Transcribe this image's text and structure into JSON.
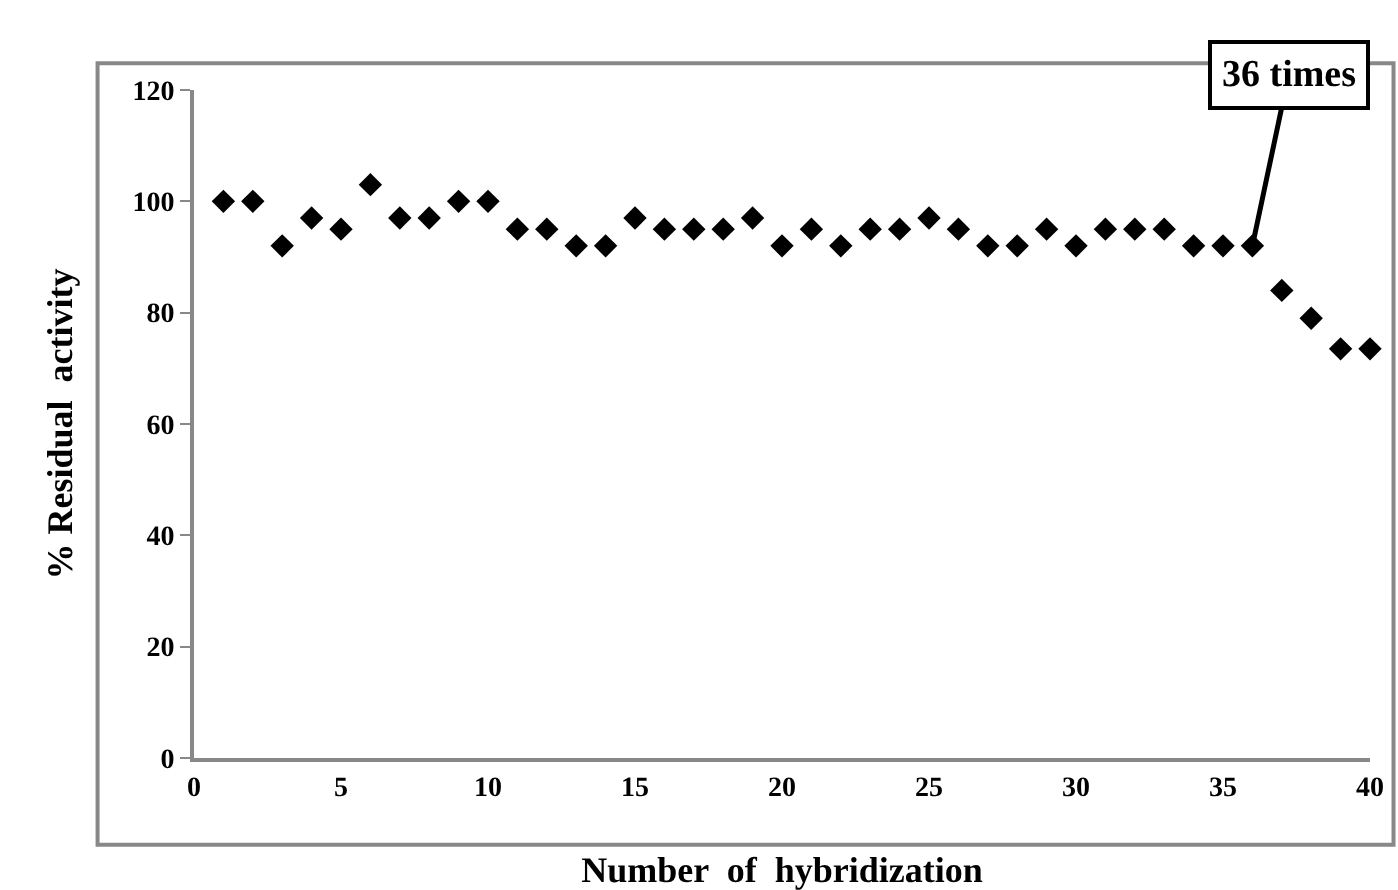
{
  "chart_data": {
    "type": "scatter",
    "xlabel": "Number  of  hybridization",
    "ylabel": "% Residual  activity",
    "x": [
      1,
      2,
      3,
      4,
      5,
      6,
      7,
      8,
      9,
      10,
      11,
      12,
      13,
      14,
      15,
      16,
      17,
      18,
      19,
      20,
      21,
      22,
      23,
      24,
      25,
      26,
      27,
      28,
      29,
      30,
      31,
      32,
      33,
      34,
      35,
      36,
      37,
      38,
      39,
      40
    ],
    "series": [
      {
        "color": "#000000",
        "values": [
          100,
          100,
          92,
          97,
          95,
          103,
          97,
          97,
          100,
          100,
          95,
          95,
          92,
          92,
          97,
          95,
          95,
          95,
          97,
          92,
          95,
          92,
          95,
          95,
          97,
          95,
          92,
          92,
          95,
          92,
          95,
          95,
          95,
          92,
          92,
          92,
          84,
          79,
          73.5,
          73.5
        ]
      }
    ],
    "xlim": [
      0,
      40
    ],
    "xticks": [
      0,
      5,
      10,
      15,
      20,
      25,
      30,
      35,
      40
    ],
    "ylim": [
      0,
      120
    ],
    "yticks": [
      0,
      20,
      40,
      60,
      80,
      100,
      120
    ],
    "marker": "diamond",
    "grid": false,
    "annotations": [
      {
        "text": "36 times",
        "x": 36,
        "y": 92
      }
    ]
  }
}
